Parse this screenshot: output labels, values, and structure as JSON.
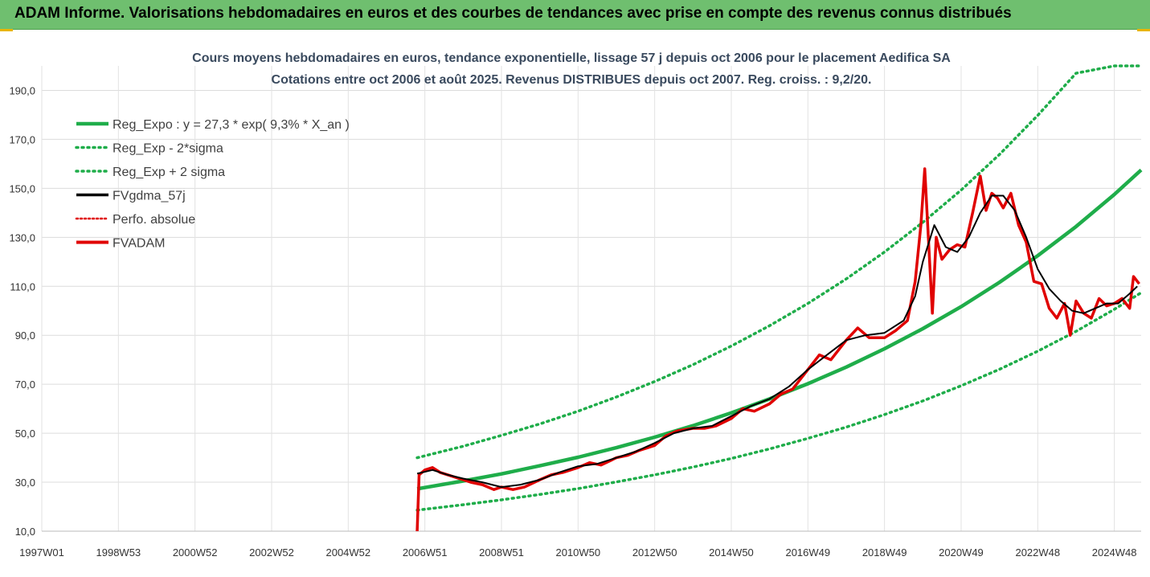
{
  "banner": {
    "title": "ADAM Informe. Valorisations hebdomadaires en euros et des courbes de tendances avec prise en compte des revenus connus distribués"
  },
  "chart_data": {
    "type": "line",
    "title": "Cours moyens hebdomadaires en euros, tendance exponentielle, lissage 57 j depuis oct 2006 pour le placement Aedifica SA",
    "subtitle": "Cotations entre oct 2006 et août 2025. Revenus DISTRIBUES depuis oct 2007. Reg. croiss. : 9,2/20.",
    "xlabel": "",
    "ylabel": "",
    "ylim": [
      10,
      200
    ],
    "xlim": [
      1997.0,
      2025.7
    ],
    "grid": true,
    "legend_position": "top-left",
    "y_ticks": [
      "10,0",
      "30,0",
      "50,0",
      "70,0",
      "90,0",
      "110,0",
      "130,0",
      "150,0",
      "170,0",
      "190,0"
    ],
    "x_ticks": [
      {
        "label": "1997W01",
        "x": 1997.0
      },
      {
        "label": "1998W53",
        "x": 1999.0
      },
      {
        "label": "2000W52",
        "x": 2001.0
      },
      {
        "label": "2002W52",
        "x": 2003.0
      },
      {
        "label": "2004W52",
        "x": 2005.0
      },
      {
        "label": "2006W51",
        "x": 2007.0
      },
      {
        "label": "2008W51",
        "x": 2009.0
      },
      {
        "label": "2010W50",
        "x": 2011.0
      },
      {
        "label": "2012W50",
        "x": 2013.0
      },
      {
        "label": "2014W50",
        "x": 2015.0
      },
      {
        "label": "2016W49",
        "x": 2017.0
      },
      {
        "label": "2018W49",
        "x": 2019.0
      },
      {
        "label": "2020W49",
        "x": 2021.0
      },
      {
        "label": "2022W48",
        "x": 2023.0
      },
      {
        "label": "2024W48",
        "x": 2025.0
      }
    ],
    "colors": {
      "reg_expo": "#1fad4a",
      "band": "#1fad4a",
      "smooth": "#000000",
      "perfo": "#e00000",
      "fvadam": "#e00000"
    },
    "regression": {
      "a": 27.3,
      "rate": 0.093,
      "x0": 2006.8,
      "x_end": 2025.7
    },
    "legend": [
      {
        "label": "Reg_Expo : y = 27,3 * exp( 9,3% *  X_an )",
        "style": "solid-green"
      },
      {
        "label": "Reg_Exp - 2*sigma",
        "style": "dotted-green"
      },
      {
        "label": "Reg_Exp + 2 sigma",
        "style": "dotted-green"
      },
      {
        "label": "FVgdma_57j",
        "style": "solid-black"
      },
      {
        "label": "Perfo. absolue",
        "style": "dotted-red"
      },
      {
        "label": "FVADAM",
        "style": "solid-red"
      }
    ],
    "series": [
      {
        "name": "Reg_Expo : y = 27,3 * exp( 9,3% *  X_an )",
        "x": [
          2006.8,
          2008.0,
          2009.0,
          2010.0,
          2011.0,
          2012.0,
          2013.0,
          2014.0,
          2015.0,
          2016.0,
          2017.0,
          2018.0,
          2019.0,
          2020.0,
          2021.0,
          2022.0,
          2023.0,
          2024.0,
          2025.0,
          2025.7
        ],
        "y": [
          27.3,
          30.5,
          33.4,
          36.7,
          40.2,
          44.1,
          48.4,
          53.1,
          58.3,
          64.0,
          70.2,
          77.0,
          84.5,
          92.7,
          101.7,
          111.6,
          122.5,
          134.4,
          147.5,
          157.5
        ]
      },
      {
        "name": "Reg_Exp - 2*sigma",
        "x": [
          2006.8,
          2008.0,
          2009.0,
          2010.0,
          2011.0,
          2012.0,
          2013.0,
          2014.0,
          2015.0,
          2016.0,
          2017.0,
          2018.0,
          2019.0,
          2020.0,
          2021.0,
          2022.0,
          2023.0,
          2024.0,
          2025.0,
          2025.7
        ],
        "y": [
          18.6,
          20.8,
          22.8,
          25.0,
          27.4,
          30.1,
          33.0,
          36.2,
          39.7,
          43.6,
          47.9,
          52.5,
          57.6,
          63.2,
          69.4,
          76.1,
          83.5,
          91.6,
          100.6,
          107.4
        ]
      },
      {
        "name": "Reg_Exp + 2 sigma",
        "x": [
          2006.8,
          2008.0,
          2009.0,
          2010.0,
          2011.0,
          2012.0,
          2013.0,
          2014.0,
          2015.0,
          2016.0,
          2017.0,
          2018.0,
          2019.0,
          2020.0,
          2021.0,
          2022.0,
          2023.0,
          2024.0,
          2025.0,
          2025.7
        ],
        "y": [
          40.0,
          44.7,
          49.1,
          53.8,
          59.0,
          64.8,
          71.1,
          78.0,
          85.6,
          93.9,
          103.0,
          113.0,
          124.0,
          136.1,
          149.3,
          163.8,
          179.8,
          197.0,
          200.0,
          200.0
        ]
      },
      {
        "name": "FVgdma_57j",
        "x": [
          2006.8,
          2007.2,
          2007.6,
          2008.0,
          2008.5,
          2009.0,
          2009.5,
          2010.0,
          2010.5,
          2011.0,
          2011.5,
          2012.0,
          2012.5,
          2013.0,
          2013.5,
          2014.0,
          2014.5,
          2015.0,
          2015.5,
          2016.0,
          2016.5,
          2017.0,
          2017.5,
          2018.0,
          2018.5,
          2019.0,
          2019.5,
          2019.8,
          2020.0,
          2020.3,
          2020.6,
          2020.9,
          2021.2,
          2021.5,
          2021.8,
          2022.1,
          2022.4,
          2022.7,
          2023.0,
          2023.3,
          2023.6,
          2023.9,
          2024.2,
          2024.5,
          2024.8,
          2025.1,
          2025.4,
          2025.6
        ],
        "y": [
          33.5,
          35.0,
          33.0,
          31.5,
          30.0,
          28.0,
          29.0,
          31.0,
          34.0,
          36.5,
          37.5,
          40.0,
          42.5,
          46.0,
          50.0,
          52.0,
          53.0,
          57.0,
          61.0,
          64.0,
          69.0,
          76.0,
          82.0,
          88.0,
          90.0,
          91.0,
          96.0,
          106.0,
          120.0,
          135.0,
          126.0,
          124.0,
          130.0,
          140.0,
          147.0,
          147.0,
          141.0,
          130.0,
          117.0,
          109.0,
          104.0,
          100.0,
          99.0,
          101.0,
          103.0,
          103.0,
          107.0,
          110.0
        ]
      },
      {
        "name": "FVADAM",
        "x": [
          2006.8,
          2006.85,
          2007.0,
          2007.2,
          2007.4,
          2007.6,
          2007.8,
          2008.0,
          2008.2,
          2008.5,
          2008.8,
          2009.0,
          2009.3,
          2009.6,
          2010.0,
          2010.3,
          2010.6,
          2011.0,
          2011.3,
          2011.6,
          2012.0,
          2012.3,
          2012.6,
          2013.0,
          2013.3,
          2013.6,
          2014.0,
          2014.3,
          2014.6,
          2015.0,
          2015.3,
          2015.6,
          2016.0,
          2016.3,
          2016.6,
          2017.0,
          2017.3,
          2017.6,
          2018.0,
          2018.3,
          2018.6,
          2019.0,
          2019.3,
          2019.6,
          2019.8,
          2019.95,
          2020.05,
          2020.15,
          2020.25,
          2020.35,
          2020.5,
          2020.7,
          2020.9,
          2021.1,
          2021.3,
          2021.5,
          2021.65,
          2021.8,
          2021.95,
          2022.1,
          2022.3,
          2022.5,
          2022.7,
          2022.9,
          2023.1,
          2023.3,
          2023.5,
          2023.7,
          2023.85,
          2024.0,
          2024.2,
          2024.4,
          2024.6,
          2024.8,
          2025.0,
          2025.2,
          2025.4,
          2025.5,
          2025.65
        ],
        "y": [
          10.0,
          33.0,
          35.0,
          36.0,
          34.0,
          33.0,
          32.0,
          31.0,
          30.0,
          29.0,
          27.0,
          28.0,
          27.0,
          28.0,
          31.0,
          33.0,
          34.0,
          36.0,
          38.0,
          37.0,
          40.0,
          41.0,
          43.0,
          45.0,
          49.0,
          51.0,
          52.0,
          52.0,
          53.0,
          56.0,
          60.0,
          59.0,
          62.0,
          66.0,
          68.0,
          76.0,
          82.0,
          80.0,
          88.0,
          93.0,
          89.0,
          89.0,
          92.0,
          96.0,
          112.0,
          135.0,
          158.0,
          128.0,
          99.0,
          130.0,
          121.0,
          125.0,
          127.0,
          126.0,
          140.0,
          155.0,
          141.0,
          148.0,
          146.0,
          142.0,
          148.0,
          135.0,
          128.0,
          112.0,
          111.0,
          101.0,
          97.0,
          103.0,
          90.0,
          104.0,
          99.0,
          97.0,
          105.0,
          102.0,
          103.0,
          105.0,
          101.0,
          114.0,
          111.0
        ]
      }
    ]
  }
}
